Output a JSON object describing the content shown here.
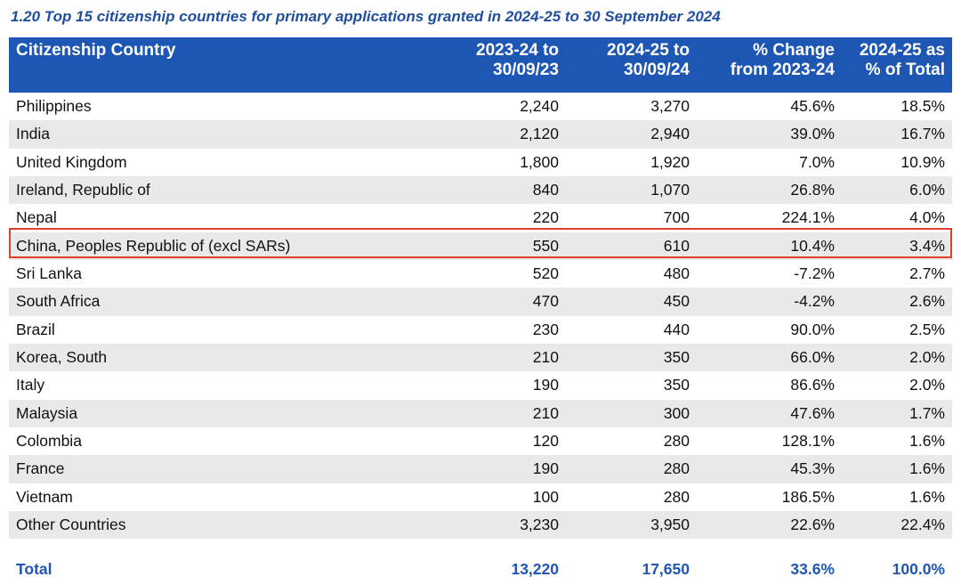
{
  "title": "1.20 Top 15 citizenship countries for primary applications granted in 2024-25 to 30 September 2024",
  "columns": [
    "Citizenship Country",
    "2023-24 to 30/09/23",
    "2024-25 to 30/09/24",
    "% Change from 2023-24",
    "2024-25 as % of Total"
  ],
  "header": {
    "c0": "Citizenship Country",
    "c1a": "2023-24 to",
    "c1b": "30/09/23",
    "c2a": "2024-25 to",
    "c2b": "30/09/24",
    "c3a": "% Change",
    "c3b": "from 2023-24",
    "c4a": "2024-25 as",
    "c4b": "% of Total"
  },
  "rows": [
    {
      "country": "Philippines",
      "y2324": "2,240",
      "y2425": "3,270",
      "change": "45.6%",
      "share": "18.5%"
    },
    {
      "country": "India",
      "y2324": "2,120",
      "y2425": "2,940",
      "change": "39.0%",
      "share": "16.7%"
    },
    {
      "country": "United Kingdom",
      "y2324": "1,800",
      "y2425": "1,920",
      "change": "7.0%",
      "share": "10.9%"
    },
    {
      "country": "Ireland, Republic of",
      "y2324": "840",
      "y2425": "1,070",
      "change": "26.8%",
      "share": "6.0%"
    },
    {
      "country": "Nepal",
      "y2324": "220",
      "y2425": "700",
      "change": "224.1%",
      "share": "4.0%"
    },
    {
      "country": "China, Peoples Republic of (excl SARs)",
      "y2324": "550",
      "y2425": "610",
      "change": "10.4%",
      "share": "3.4%"
    },
    {
      "country": "Sri Lanka",
      "y2324": "520",
      "y2425": "480",
      "change": "-7.2%",
      "share": "2.7%"
    },
    {
      "country": "South Africa",
      "y2324": "470",
      "y2425": "450",
      "change": "-4.2%",
      "share": "2.6%"
    },
    {
      "country": "Brazil",
      "y2324": "230",
      "y2425": "440",
      "change": "90.0%",
      "share": "2.5%"
    },
    {
      "country": "Korea, South",
      "y2324": "210",
      "y2425": "350",
      "change": "66.0%",
      "share": "2.0%"
    },
    {
      "country": "Italy",
      "y2324": "190",
      "y2425": "350",
      "change": "86.6%",
      "share": "2.0%"
    },
    {
      "country": "Malaysia",
      "y2324": "210",
      "y2425": "300",
      "change": "47.6%",
      "share": "1.7%"
    },
    {
      "country": "Colombia",
      "y2324": "120",
      "y2425": "280",
      "change": "128.1%",
      "share": "1.6%"
    },
    {
      "country": "France",
      "y2324": "190",
      "y2425": "280",
      "change": "45.3%",
      "share": "1.6%"
    },
    {
      "country": "Vietnam",
      "y2324": "100",
      "y2425": "280",
      "change": "186.5%",
      "share": "1.6%"
    },
    {
      "country": "Other Countries",
      "y2324": "3,230",
      "y2425": "3,950",
      "change": "22.6%",
      "share": "22.4%"
    }
  ],
  "total": {
    "label": "Total",
    "y2324": "13,220",
    "y2425": "17,650",
    "change": "33.6%",
    "share": "100.0%"
  },
  "highlighted_row": "China, Peoples Republic of (excl SARs)",
  "colors": {
    "header_bg": "#1d56b3",
    "title": "#1f4e9f",
    "highlight_border": "#e0412f",
    "stripe": "#e9e9e9"
  }
}
